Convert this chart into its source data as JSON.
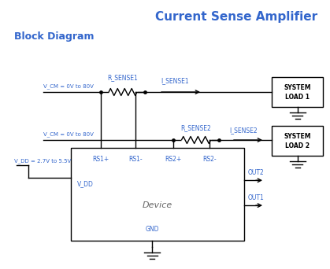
{
  "title": "Current Sense Amplifier",
  "subtitle": "Block Diagram",
  "title_color": "#3366cc",
  "subtitle_color": "#3366cc",
  "line_color": "#000000",
  "label_color": "#3366cc",
  "bg_color": "#ffffff",
  "vcm1_label": "V_CM = 0V to 80V",
  "vcm2_label": "V_CM = 0V to 80V",
  "vdd_label": "V_DD = 2.7V to 5.5V",
  "rsense1_label": "R_SENSE1",
  "rsense2_label": "R_SENSE2",
  "isense1_label": "I_SENSE1",
  "isense2_label": "I_SENSE2",
  "rs1p_label": "RS1+",
  "rs1m_label": "RS1-",
  "rs2p_label": "RS2+",
  "rs2m_label": "RS2-",
  "vdd_pin_label": "V_DD",
  "gnd_label": "GND",
  "device_label": "Device",
  "out1_label": "OUT1",
  "out2_label": "OUT2",
  "sys1_line1": "SYSTEM",
  "sys1_line2": "LOAD 1",
  "sys2_line1": "SYSTEM",
  "sys2_line2": "LOAD 2"
}
